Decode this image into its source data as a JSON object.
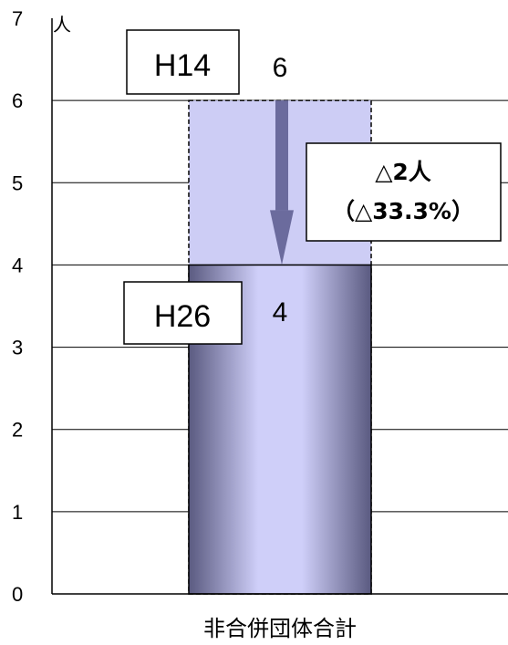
{
  "chart_data": {
    "type": "bar",
    "categories": [
      "非合併団体合計"
    ],
    "series": [
      {
        "name": "H14",
        "values": [
          6
        ]
      },
      {
        "name": "H26",
        "values": [
          4
        ]
      }
    ],
    "ylim": [
      0,
      7
    ],
    "yticks": [
      0,
      1,
      2,
      3,
      4,
      5,
      6,
      7
    ],
    "y_unit": "人",
    "annotations": {
      "change_line1": "△2人",
      "change_line2": "（△33.3%）"
    },
    "grid": true,
    "colors": {
      "h14_fill": "#cdcdf5",
      "h26_dark": "#5a5a80",
      "h26_light": "#cfcff9",
      "arrow": "#6b6b9d"
    }
  }
}
